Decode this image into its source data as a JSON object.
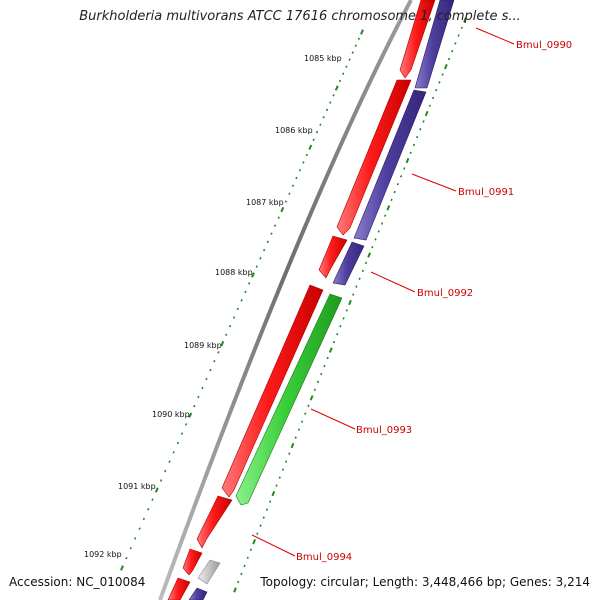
{
  "title": "Burkholderia multivorans ATCC 17616 chromosome 1, complete s...",
  "footer": {
    "accession": "Accession: NC_010084",
    "summary": "Topology: circular; Length: 3,448,466 bp; Genes: 3,214"
  },
  "scale": {
    "labels": [
      "1085 kbp",
      "1086 kbp",
      "1087 kbp",
      "1088 kbp",
      "1089 kbp",
      "1090 kbp",
      "1091 kbp",
      "1092 kbp"
    ]
  },
  "genes": [
    {
      "name": "Bmul_0990",
      "strand": "forward",
      "color": "#ee1111"
    },
    {
      "name": "Bmul_0990",
      "strand": "reverse",
      "color": "#4b3b9a"
    },
    {
      "name": "Bmul_0991",
      "strand": "forward",
      "color": "#ee1111"
    },
    {
      "name": "Bmul_0991",
      "strand": "reverse",
      "color": "#4b3b9a"
    },
    {
      "name": "Bmul_0992",
      "strand": "forward",
      "color": "#ee1111"
    },
    {
      "name": "Bmul_0992",
      "strand": "reverse",
      "color": "#4b3b9a"
    },
    {
      "name": "Bmul_0993",
      "strand": "forward",
      "color": "#ee1111"
    },
    {
      "name": "Bmul_0993",
      "strand": "reverse",
      "color": "#33cc33"
    },
    {
      "name": "Bmul_0994",
      "strand": "forward",
      "color": "#ee1111"
    },
    {
      "name": "Bmul_0994",
      "strand": "reverse",
      "color": "#bbbbbb"
    }
  ],
  "callouts": [
    "Bmul_0990",
    "Bmul_0991",
    "Bmul_0992",
    "Bmul_0993",
    "Bmul_0994"
  ],
  "colors": {
    "backbone": "#777777",
    "ticks": "#228822",
    "callout_line": "#dd0000",
    "gene_label": "#cc0000"
  }
}
